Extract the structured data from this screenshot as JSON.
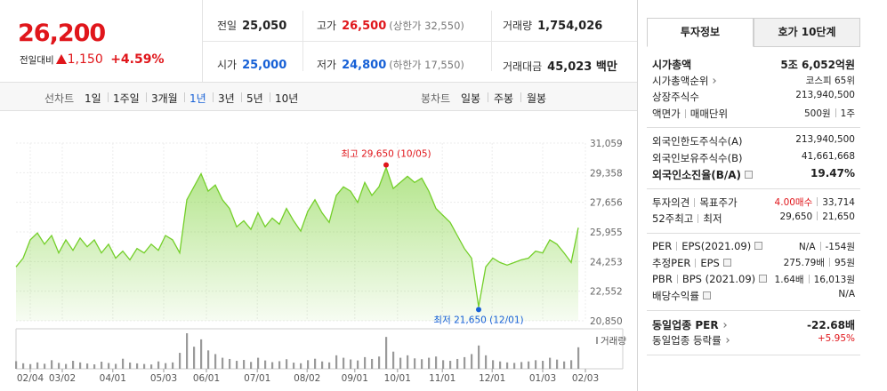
{
  "quote": {
    "price": "26,200",
    "change_label": "전일대비",
    "change": "1,150",
    "change_pct": "+4.59%"
  },
  "summary": [
    [
      {
        "label": "전일",
        "value": "25,050"
      },
      {
        "label": "고가",
        "value": "26,500",
        "note": "(상한가 32,550)",
        "color": "#e0161b"
      },
      {
        "label": "거래량",
        "value": "1,754,026"
      }
    ],
    [
      {
        "label": "시가",
        "value": "25,000",
        "color": "#1660d6"
      },
      {
        "label": "저가",
        "value": "24,800",
        "note": "(하한가 17,550)",
        "color": "#1660d6"
      },
      {
        "label": "거래대금",
        "value": "45,023 백만"
      }
    ]
  ],
  "chart_tabs": {
    "line_label": "선차트",
    "line_periods": [
      "1일",
      "1주일",
      "3개월",
      "1년",
      "3년",
      "5년",
      "10년"
    ],
    "selected_index": 3,
    "candle_label": "봉차트",
    "candle_periods": [
      "일봉",
      "주봉",
      "월봉"
    ]
  },
  "chart_data": [
    {
      "type": "area",
      "color": "#74cf2a",
      "values": [
        23950,
        24450,
        25500,
        25900,
        25250,
        25750,
        24750,
        25500,
        24900,
        25600,
        25100,
        25500,
        24750,
        25250,
        24450,
        24850,
        24350,
        25000,
        24750,
        25250,
        24900,
        25750,
        25500,
        24750,
        27800,
        28550,
        29300,
        28300,
        28650,
        27800,
        27300,
        26250,
        26600,
        26100,
        27050,
        26250,
        26750,
        26400,
        27300,
        26600,
        26000,
        27150,
        27800,
        27050,
        26500,
        28050,
        28550,
        28300,
        27650,
        28800,
        28050,
        28550,
        29650,
        28450,
        28800,
        29150,
        28800,
        29050,
        28300,
        27300,
        26900,
        26500,
        25750,
        25000,
        24450,
        21650,
        23950,
        24450,
        24200,
        24050,
        24200,
        24350,
        24450,
        24850,
        24750,
        25500,
        25250,
        24750,
        24200,
        26200
      ],
      "xlim": [
        0,
        80
      ],
      "ylim": [
        20850,
        31059
      ],
      "yticks": [
        {
          "value": 31059,
          "label": "31,059"
        },
        {
          "value": 29358,
          "label": "29,358"
        },
        {
          "value": 27656,
          "label": "27,656"
        },
        {
          "value": 25955,
          "label": "25,955"
        },
        {
          "value": 24253,
          "label": "24,253"
        },
        {
          "value": 22552,
          "label": "22,552"
        },
        {
          "value": 20850,
          "label": "20,850"
        }
      ],
      "grid": true,
      "annotations": [
        {
          "text": "최고 29,650 (10/05)",
          "color": "#e0161b",
          "at": "max"
        },
        {
          "text": "최저 21,650 (12/01)",
          "color": "#1660d6",
          "at": "min"
        }
      ]
    },
    {
      "type": "bar",
      "legend": "거래량",
      "color": "#9a9a9a",
      "xlim": [
        0,
        80
      ],
      "values": [
        620000,
        450000,
        380000,
        520000,
        410000,
        700000,
        480000,
        390000,
        650000,
        520000,
        430000,
        360000,
        580000,
        470000,
        400000,
        820000,
        510000,
        440000,
        390000,
        350000,
        600000,
        460000,
        520000,
        1300000,
        2900000,
        1800000,
        2400000,
        1500000,
        1200000,
        900000,
        800000,
        650000,
        720000,
        560000,
        900000,
        680000,
        540000,
        620000,
        780000,
        500000,
        450000,
        700000,
        820000,
        600000,
        520000,
        1100000,
        900000,
        760000,
        680000,
        950000,
        800000,
        1000000,
        2600000,
        1400000,
        900000,
        1100000,
        850000,
        780000,
        900000,
        1000000,
        700000,
        650000,
        800000,
        950000,
        1200000,
        1900000,
        1100000,
        700000,
        600000,
        520000,
        480000,
        550000,
        600000,
        700000,
        650000,
        900000,
        750000,
        600000,
        700000,
        1754026
      ],
      "xticks": [
        {
          "value": 2,
          "label": "02/04"
        },
        {
          "value": 6.5,
          "label": "03/02"
        },
        {
          "value": 13.6,
          "label": "04/01"
        },
        {
          "value": 20.75,
          "label": "05/03"
        },
        {
          "value": 26.75,
          "label": "06/01"
        },
        {
          "value": 33.9,
          "label": "07/01"
        },
        {
          "value": 40.9,
          "label": "08/02"
        },
        {
          "value": 47.6,
          "label": "09/01"
        },
        {
          "value": 53.6,
          "label": "10/01"
        },
        {
          "value": 59.9,
          "label": "11/01"
        },
        {
          "value": 66.9,
          "label": "12/01"
        },
        {
          "value": 74,
          "label": "01/03"
        },
        {
          "value": 80,
          "label": "02/03"
        }
      ]
    }
  ],
  "info": {
    "tabs": [
      "투자정보",
      "호가 10단계"
    ],
    "selected_tab": 0,
    "groups": [
      [
        {
          "label": [
            "시가총액"
          ],
          "value": [
            "5조 6,052억원"
          ],
          "bold": true
        },
        {
          "label": [
            "시가총액순위"
          ],
          "more": true,
          "value": [
            "코스피 65위"
          ]
        },
        {
          "label": [
            "상장주식수"
          ],
          "value": [
            "213,940,500"
          ]
        },
        {
          "label": [
            "액면가",
            "매매단위"
          ],
          "value": [
            "500원",
            "1주"
          ]
        }
      ],
      [
        {
          "label": [
            "외국인한도주식수(A)"
          ],
          "value": [
            "213,940,500"
          ]
        },
        {
          "label": [
            "외국인보유주식수(B)"
          ],
          "value": [
            "41,661,668"
          ]
        },
        {
          "label": [
            "외국인소진율(B/A)"
          ],
          "help": true,
          "value": [
            "19.47%"
          ],
          "bold": true
        }
      ],
      [
        {
          "label": [
            "투자의견",
            "목표주가"
          ],
          "value": [
            "4.00매수",
            "33,714"
          ],
          "value_colors": [
            "#e0161b",
            null
          ]
        },
        {
          "label": [
            "52주최고",
            "최저"
          ],
          "value": [
            "29,650",
            "21,650"
          ]
        }
      ],
      [
        {
          "label": [
            "PER",
            "EPS(2021.09)"
          ],
          "help": true,
          "value": [
            "N/A",
            "-154원"
          ]
        },
        {
          "label": [
            "추정PER",
            "EPS"
          ],
          "help": true,
          "value": [
            "275.79배",
            "95원"
          ]
        },
        {
          "label": [
            "PBR",
            "BPS (2021.09)"
          ],
          "help": true,
          "value": [
            "1.64배",
            "16,013원"
          ]
        },
        {
          "label": [
            "배당수익률"
          ],
          "help": true,
          "value": [
            "N/A"
          ]
        }
      ],
      [
        {
          "label": [
            "동일업종 PER"
          ],
          "more": true,
          "value": [
            "-22.68배"
          ],
          "bold": true
        },
        {
          "label": [
            "동일업종 등락률"
          ],
          "more": true,
          "value": [
            "+5.95%"
          ],
          "value_colors": [
            "#e0161b"
          ]
        }
      ]
    ]
  }
}
